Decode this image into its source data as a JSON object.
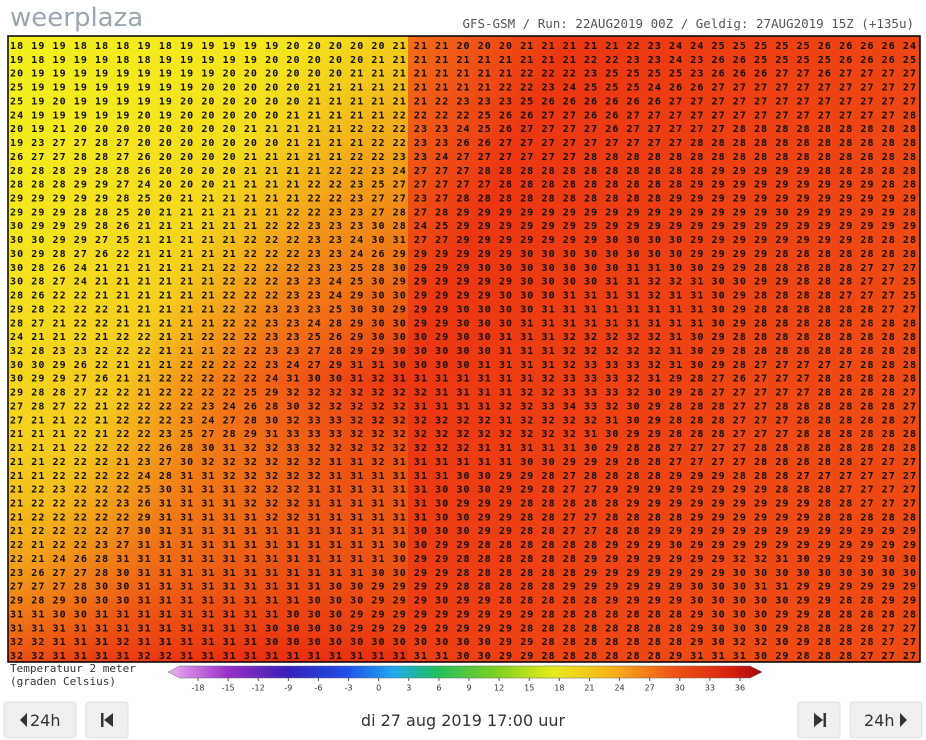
{
  "header": {
    "logo": "weerplaza",
    "run_info": "GFS-GSM  /  Run: 22AUG2019 00Z  /  Geldig: 27AUG2019 15Z  (+135u)"
  },
  "map": {
    "grid_rows": [
      "18 19 19 18 18 18 19 18 19 19 19 19 19 20 20 20 20 20 21 21 21 20 20 20 21 21 21 21 21 22 23 24 24 25 25 25 25 25 26 26 26 26 24",
      "19 18 19 19 19 18 18 19 19 19 19 19 20 20 20 20 20 21 21 21 21 21 21 21 21 21 21 22 22 23 23 24 23 26 26 25 25 25 25 26 26 26 25",
      "20 19 19 19 19 19 19 19 19 19 20 20 20 20 20 20 21 21 21 21 21 21 21 21 22 22 22 23 25 25 25 25 23 26 26 26 27 27 26 27 27 27 27",
      "25 19 19 19 19 19 19 19 19 20 20 20 20 20 21 21 21 21 21 21 21 21 21 22 22 23 24 25 25 25 24 26 26 27 27 27 27 27 27 27 27 27 27",
      "25 19 20 19 19 19 19 19 20 20 20 20 20 20 21 21 21 21 21 21 22 23 23 23 25 26 26 26 26 26 26 27 27 27 27 27 27 27 27 27 27 27 27",
      "24 19 19 19 19 19 20 19 20 20 20 20 20 21 21 21 21 21 22 22 22 22 25 26 26 27 27 26 26 27 27 27 27 27 27 27 27 27 27 27 27 27 28",
      "20 19 21 20 20 20 20 20 20 20 20 21 21 21 21 21 22 22 22 23 23 24 25 26 27 27 27 27 26 27 27 27 27 27 28 28 28 28 28 28 28 28 28",
      "19 23 27 27 28 27 20 20 20 20 20 20 20 21 21 21 21 22 22 23 23 26 26 27 27 27 27 27 27 27 27 27 28 28 28 28 28 28 28 28 28 28 28",
      "26 27 27 28 28 27 26 20 20 20 20 21 21 21 21 21 22 22 23 23 24 27 27 27 27 27 27 28 28 28 28 28 28 28 28 28 28 28 28 28 28 28 28",
      "28 28 28 29 28 28 26 20 20 20 20 21 21 21 21 22 22 23 24 27 27 27 28 28 28 28 28 28 28 28 28 28 28 29 29 29 29 29 28 28 28 28 28",
      "28 28 28 29 29 27 24 20 20 20 21 21 21 21 22 22 23 25 27 27 27 27 27 28 28 28 28 28 28 28 28 28 29 29 29 29 29 29 29 29 29 28 28",
      "29 29 29 29 29 28 25 20 21 21 21 21 21 21 22 22 23 27 27 23 27 28 28 28 28 28 28 28 28 28 28 29 29 29 29 29 29 29 29 29 29 29 29",
      "29 29 29 28 28 25 20 21 21 21 21 21 21 22 22 23 23 27 28 27 28 29 29 29 29 29 29 29 29 29 29 29 29 29 29 29 30 29 29 29 29 29 28",
      "30 29 29 29 28 26 21 21 21 21 21 21 22 22 23 23 23 30 28 24 25 29 29 29 29 29 29 29 29 29 29 29 29 29 29 29 29 29 29 29 29 29 29",
      "30 30 29 29 27 25 21 21 21 21 21 22 22 22 23 23 24 30 31 27 27 29 29 29 29 29 29 29 30 30 30 30 29 29 29 29 29 29 29 29 28 28 28",
      "30 29 28 27 26 22 21 21 21 21 21 22 22 22 23 23 24 26 29 29 29 29 29 29 30 30 30 30 30 30 30 30 29 29 29 29 28 28 28 28 28 28 28",
      "30 28 26 24 21 21 21 21 21 21 22 22 22 22 23 23 25 28 30 29 29 29 30 30 30 30 30 30 30 31 31 30 30 29 29 28 28 28 28 28 27 27 27",
      "30 28 27 24 21 21 21 21 21 21 22 22 22 23 23 24 25 30 29 29 29 29 29 29 30 30 30 30 31 31 32 32 31 30 30 29 29 28 28 28 27 27 25",
      "28 26 22 22 21 21 21 21 21 21 22 22 22 23 23 24 29 30 30 29 29 29 29 30 30 30 31 31 31 31 32 31 31 30 29 28 28 28 28 27 27 27 25",
      "29 28 22 22 22 21 21 21 21 21 22 22 23 23 23 25 30 30 29 29 29 30 30 30 30 31 31 31 31 31 31 31 31 30 29 28 28 28 28 28 28 27 27",
      "28 27 21 22 22 21 21 21 21 21 22 22 23 23 24 28 29 30 30 29 29 30 30 30 31 31 31 31 31 31 31 31 31 30 29 28 28 28 28 28 28 28 28",
      "24 21 21 22 21 22 22 21 21 22 22 22 23 23 25 26 29 30 30 30 29 30 30 31 31 31 32 32 32 32 32 31 30 29 28 28 28 28 28 28 28 28 28",
      "32 28 23 23 22 22 22 21 21 21 22 22 23 23 27 28 29 29 30 30 30 30 30 31 31 31 32 32 32 32 32 31 30 29 28 28 28 28 28 28 28 28 28",
      "30 30 29 26 22 21 21 21 22 22 22 22 23 24 27 29 31 31 30 30 30 30 31 31 31 31 32 33 33 33 32 31 30 29 28 27 27 27 27 27 28 28 28",
      "30 29 29 27 26 21 21 22 22 22 22 22 24 31 30 30 31 32 31 31 31 31 31 31 31 32 33 33 33 32 31 29 28 27 26 27 27 27 28 28 28 28 28",
      "29 28 28 27 22 22 21 22 22 22 22 25 29 32 32 32 32 32 32 32 31 31 31 31 32 32 33 33 33 32 30 29 28 27 27 27 27 27 28 28 28 28 27",
      "27 28 27 22 21 22 22 22 22 23 24 26 28 30 32 32 32 32 32 31 31 31 31 32 32 33 34 33 32 30 29 28 28 28 27 27 28 28 28 28 28 28 27",
      "27 21 21 22 21 22 22 22 23 24 27 28 30 32 33 33 32 32 32 32 32 32 32 31 32 32 32 32 31 30 29 28 28 28 27 27 27 28 28 28 28 28 27",
      "21 21 21 22 21 22 22 23 25 27 28 29 31 33 33 33 32 32 32 32 32 32 32 32 32 32 32 31 30 29 29 28 28 28 27 27 27 28 28 28 28 28 28",
      "21 21 21 22 22 22 22 26 28 30 31 32 32 33 32 32 32 32 32 32 32 32 31 31 31 31 31 30 29 28 28 27 27 27 27 28 28 28 28 28 28 28 28",
      "21 21 22 22 22 21 23 27 30 32 32 32 32 32 32 31 31 32 31 31 31 31 31 31 30 30 29 29 29 28 28 27 27 27 27 28 28 28 28 28 27 27 27",
      "21 21 22 22 22 22 24 28 31 31 32 32 32 32 32 31 31 31 31 31 31 30 30 29 29 28 27 28 28 28 28 29 29 29 28 28 28 27 27 27 27 27 27",
      "21 22 23 22 22 22 25 30 31 31 31 32 32 32 31 31 31 31 31 31 30 30 30 29 29 28 27 27 29 29 29 29 29 29 29 29 28 28 28 27 27 27 27",
      "21 22 22 22 22 23 26 31 31 31 31 32 32 32 31 31 31 31 31 31 30 29 29 29 28 28 28 28 28 29 29 29 29 29 29 29 29 29 28 28 27 27 27",
      "21 22 22 22 22 22 29 31 31 31 31 31 32 32 31 31 31 31 31 31 30 30 29 29 28 28 27 27 28 28 28 28 29 29 29 29 29 29 28 28 28 28 28",
      "21 22 22 22 22 27 30 31 31 31 31 31 31 31 31 31 31 31 31 30 30 30 29 29 28 28 27 27 28 28 29 29 29 29 29 29 29 29 29 29 29 29 29",
      "22 21 22 22 23 27 31 31 31 31 31 31 31 31 31 31 31 31 30 30 29 29 28 28 28 28 28 28 29 29 29 30 29 29 29 29 29 29 29 29 29 29 29",
      "22 21 24 26 28 31 31 31 31 31 31 31 31 31 31 31 31 31 30 29 29 28 28 28 28 28 28 29 29 29 29 29 29 29 32 32 31 30 29 29 29 30 30",
      "23 26 27 27 28 30 31 31 31 31 31 31 31 31 31 31 31 30 30 29 29 28 28 28 28 28 28 29 29 29 29 29 29 29 30 30 30 30 30 30 30 30 30",
      "27 27 27 28 30 30 31 31 31 31 31 31 31 31 31 30 30 29 29 29 29 28 28 28 28 28 29 29 29 29 29 29 30 30 30 31 31 29 29 29 29 29 29",
      "29 28 29 30 30 30 31 31 31 31 31 31 31 31 30 30 30 29 29 29 30 29 29 28 28 28 28 28 29 29 29 29 30 30 30 30 30 29 29 28 28 29 29",
      "31 31 30 30 31 31 31 31 31 31 31 31 31 30 30 30 29 29 29 29 29 29 29 29 29 28 28 28 28 28 28 28 29 30 30 30 29 29 28 28 28 28 28",
      "31 31 31 31 31 31 31 31 31 31 31 31 30 30 30 30 29 29 29 29 29 29 29 29 28 28 28 28 28 28 28 28 29 30 30 30 29 28 28 28 28 27 27",
      "32 32 31 31 31 32 31 31 31 31 31 31 30 30 30 30 30 30 30 30 30 30 30 29 29 28 28 28 28 28 28 28 29 30 32 32 30 29 28 28 28 27 27",
      "32 32 31 31 31 31 32 32 31 31 31 31 31 31 31 31 31 31 31 31 31 30 30 29 29 28 28 28 28 28 28 29 31 31 31 30 29 28 28 28 27 27 27"
    ]
  },
  "legend": {
    "title": "Temperatuur 2 meter",
    "subtitle": "(graden Celsius)",
    "ticks": [
      -18,
      -15,
      -12,
      -9,
      -6,
      -3,
      0,
      3,
      6,
      9,
      12,
      15,
      18,
      21,
      24,
      27,
      30,
      33,
      36
    ]
  },
  "nav": {
    "prev_24h": "24h",
    "date": "di 27 aug 2019 17:00 uur",
    "next_24h": "24h"
  }
}
